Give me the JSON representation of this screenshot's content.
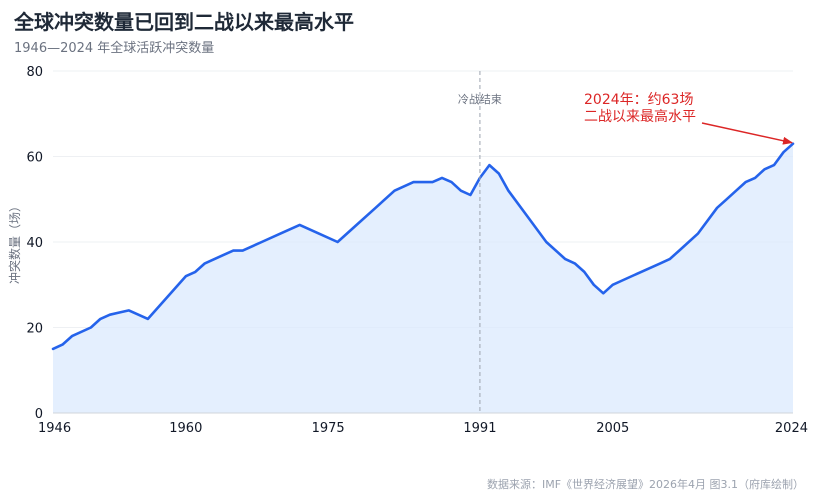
{
  "header": {
    "title": "全球冲突数量已回到二战以来最高水平",
    "subtitle": "1946—2024 年全球活跃冲突数量"
  },
  "footer": {
    "source": "数据来源：IMF《世界经济展望》2026年4月  图3.1（府库绘制）"
  },
  "colors": {
    "line": "#2563eb",
    "fill": "#dbeafe",
    "annotation": "#dc2626",
    "grid": "#eef0f3",
    "reference": "#9ca3af"
  },
  "chart_data": {
    "type": "area",
    "xlabel": "",
    "ylabel": "冲突数量（场）",
    "xlim": [
      1946,
      2024
    ],
    "ylim": [
      0,
      80
    ],
    "x_ticks": [
      1946,
      1960,
      1975,
      1991,
      2005,
      2024
    ],
    "y_ticks": [
      0,
      20,
      40,
      60,
      80
    ],
    "grid": true,
    "series": [
      {
        "x": [
          1946,
          1947,
          1948,
          1950,
          1951,
          1952,
          1953,
          1954,
          1956,
          1958,
          1960,
          1961,
          1962,
          1964,
          1965,
          1966,
          1968,
          1970,
          1972,
          1974,
          1976,
          1978,
          1980,
          1982,
          1984,
          1986,
          1987,
          1988,
          1989,
          1990,
          1991,
          1992,
          1993,
          1994,
          1996,
          1998,
          2000,
          2001,
          2002,
          2003,
          2004,
          2005,
          2006,
          2008,
          2010,
          2011,
          2012,
          2014,
          2016,
          2017,
          2018,
          2019,
          2020,
          2021,
          2022,
          2023,
          2024
        ],
        "y": [
          15,
          16,
          18,
          20,
          22,
          23,
          23.5,
          24,
          22,
          27,
          32,
          33,
          35,
          37,
          38,
          38,
          40,
          42,
          44,
          42,
          40,
          44,
          48,
          52,
          54,
          54,
          55,
          54,
          52,
          51,
          55,
          58,
          56,
          52,
          46,
          40,
          36,
          35,
          33,
          30,
          28,
          30,
          31,
          33,
          35,
          36,
          38,
          42,
          48,
          50,
          52,
          54,
          55,
          57,
          58,
          61,
          63
        ]
      }
    ],
    "reference_line": {
      "x": 1991,
      "label": "冷战结束"
    },
    "annotation": {
      "lines": [
        "2024年：约63场",
        "二战以来最高水平"
      ],
      "point": {
        "x": 2024,
        "y": 63
      }
    }
  }
}
